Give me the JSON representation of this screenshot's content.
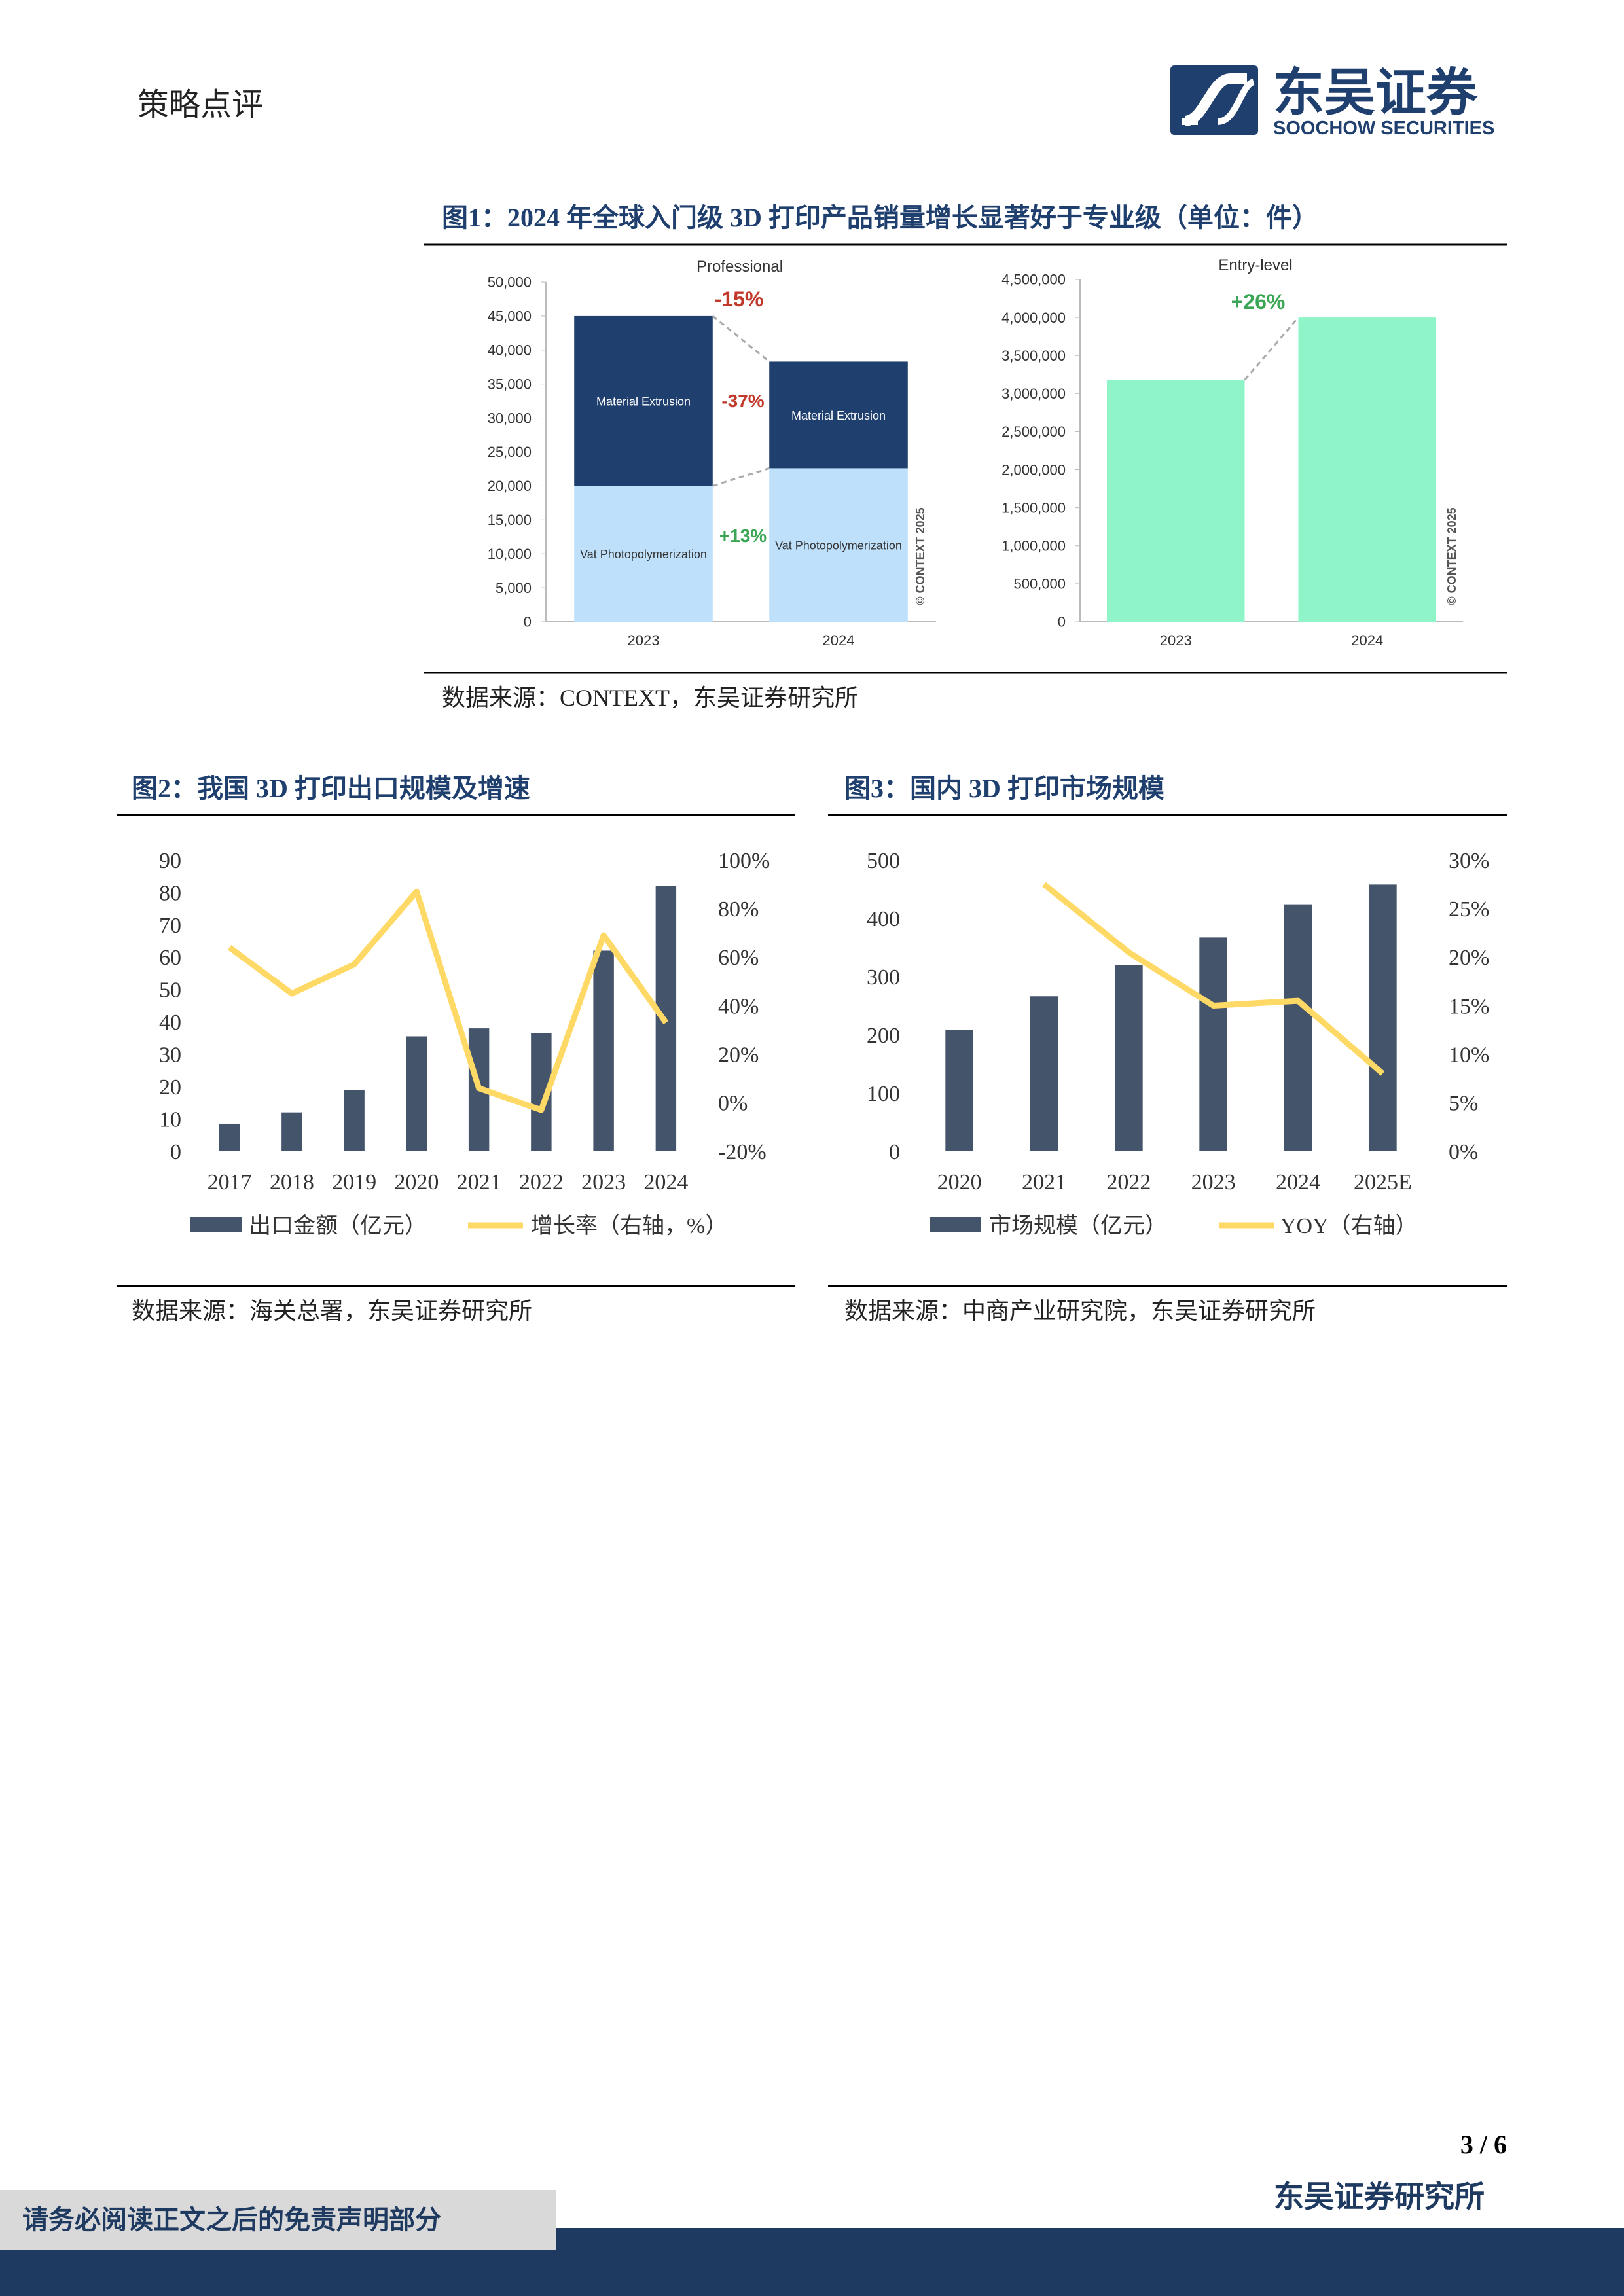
{
  "header": {
    "section": "策略点评",
    "logo_cn": "东吴证券",
    "logo_en": "SOOCHOW SECURITIES"
  },
  "figures": [
    {
      "title": "图1：2024 年全球入门级 3D 打印产品销量增长显著好于专业级（单位：件）",
      "source": "数据来源：CONTEXT，东吴证券研究所"
    },
    {
      "title": "图2：我国 3D 打印出口规模及增速",
      "source": "数据来源：海关总署，东吴证券研究所"
    },
    {
      "title": "图3：国内 3D 打印市场规模",
      "source": "数据来源：中商产业研究院，东吴证券研究所"
    }
  ],
  "chart_data": [
    {
      "type": "stacked_bar",
      "subtitle": "Professional",
      "categories": [
        "2023",
        "2024"
      ],
      "series": [
        {
          "name": "Vat Photopolymerization",
          "color": "#bfe0fb",
          "values": [
            20000,
            22600
          ]
        },
        {
          "name": "Material Extrusion",
          "color": "#1f3f6e",
          "values": [
            25000,
            15700
          ]
        }
      ],
      "ylim": [
        0,
        50000
      ],
      "yticks": [
        0,
        {
          "value": 5000,
          "label": "5,000"
        },
        {
          "value": 10000,
          "label": "10,000"
        },
        {
          "value": 15000,
          "label": "15,000"
        },
        {
          "value": 20000,
          "label": "20,000"
        },
        {
          "value": 25000,
          "label": "25,000"
        },
        {
          "value": 30000,
          "label": "30,000"
        },
        {
          "value": 35000,
          "label": "35,000"
        },
        {
          "value": 40000,
          "label": "40,000"
        },
        {
          "value": 45000,
          "label": "45,000"
        },
        {
          "value": 50000,
          "label": "50,000"
        }
      ],
      "annotations": [
        {
          "text": "-15%",
          "color": "#c0392b"
        },
        {
          "text": "-37%",
          "color": "#c0392b"
        },
        {
          "text": "+13%",
          "color": "#3aa655"
        }
      ],
      "watermark": "© CONTEXT 2025"
    },
    {
      "type": "bar",
      "subtitle": "Entry-level",
      "categories": [
        "2023",
        "2024"
      ],
      "values": [
        3180000,
        4000000
      ],
      "color": "#8ff5c9",
      "ylim": [
        0,
        4500000
      ],
      "yticks": [
        0,
        {
          "value": 500000,
          "label": "500,000"
        },
        {
          "value": 1000000,
          "label": "1,000,000"
        },
        {
          "value": 1500000,
          "label": "1,500,000"
        },
        {
          "value": 2000000,
          "label": "2,000,000"
        },
        {
          "value": 2500000,
          "label": "2,500,000"
        },
        {
          "value": 3000000,
          "label": "3,000,000"
        },
        {
          "value": 3500000,
          "label": "3,500,000"
        },
        {
          "value": 4000000,
          "label": "4,000,000"
        },
        {
          "value": 4500000,
          "label": "4,500,000"
        }
      ],
      "annotations": [
        {
          "text": "+26%",
          "color": "#3aa655"
        }
      ],
      "watermark": "© CONTEXT 2025"
    },
    {
      "type": "bar_line",
      "categories": [
        "2017",
        "2018",
        "2019",
        "2020",
        "2021",
        "2022",
        "2023",
        "2024"
      ],
      "series": [
        {
          "name": "出口金额（亿元）",
          "color": "#44546a",
          "values": [
            8.5,
            12,
            19,
            35.5,
            38,
            36.5,
            62,
            82
          ]
        },
        {
          "name": "增长率（右轴，%）",
          "color": "#ffd966",
          "axis": "y2",
          "values": [
            64,
            45,
            57,
            87,
            6,
            -3,
            69,
            33
          ]
        }
      ],
      "ylim": [
        0,
        90
      ],
      "yticks": [
        0,
        10,
        20,
        30,
        40,
        50,
        60,
        70,
        80,
        90
      ],
      "y2lim": [
        -20,
        100
      ],
      "y2ticks": [
        {
          "value": -20,
          "label": "-20%"
        },
        {
          "value": 0,
          "label": "0%"
        },
        {
          "value": 20,
          "label": "20%"
        },
        {
          "value": 40,
          "label": "40%"
        },
        {
          "value": 60,
          "label": "60%"
        },
        {
          "value": 80,
          "label": "80%"
        },
        {
          "value": 100,
          "label": "100%"
        }
      ]
    },
    {
      "type": "bar_line",
      "categories": [
        "2020",
        "2021",
        "2022",
        "2023",
        "2024",
        "2025E"
      ],
      "series": [
        {
          "name": "市场规模（亿元）",
          "color": "#44546a",
          "values": [
            208,
            266,
            320,
            367,
            424,
            458
          ]
        },
        {
          "name": "YOY（右轴）",
          "color": "#ffd966",
          "axis": "y2",
          "values": [
            null,
            27.5,
            20.5,
            15,
            15.5,
            8
          ]
        }
      ],
      "ylim": [
        0,
        500
      ],
      "yticks": [
        0,
        100,
        200,
        300,
        400,
        500
      ],
      "y2lim": [
        0,
        30
      ],
      "y2ticks": [
        {
          "value": 0,
          "label": "0%"
        },
        {
          "value": 5,
          "label": "5%"
        },
        {
          "value": 10,
          "label": "10%"
        },
        {
          "value": 15,
          "label": "15%"
        },
        {
          "value": 20,
          "label": "20%"
        },
        {
          "value": 25,
          "label": "25%"
        },
        {
          "value": 30,
          "label": "30%"
        }
      ]
    }
  ],
  "footer": {
    "page": "3 / 6",
    "org": "东吴证券研究所",
    "disclaimer": "请务必阅读正文之后的免责声明部分"
  }
}
